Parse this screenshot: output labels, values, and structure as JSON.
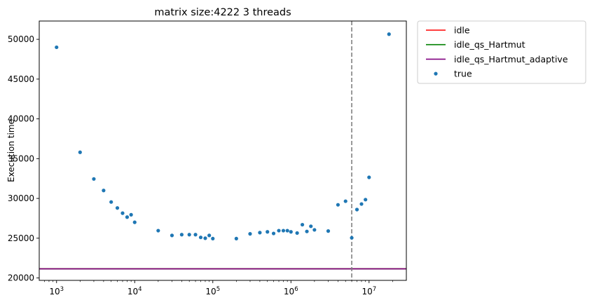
{
  "chart_data": {
    "type": "scatter",
    "title": "matrix size:4222 3 threads",
    "xlabel": "",
    "ylabel": "Execution time",
    "xscale": "log",
    "xlim": [
      600,
      30000000
    ],
    "ylim": [
      19700,
      52300
    ],
    "grid": false,
    "legend_position": "outside-right-top",
    "x_ticks": [
      {
        "value": 1000,
        "base": "10",
        "exp": "3"
      },
      {
        "value": 10000,
        "base": "10",
        "exp": "4"
      },
      {
        "value": 100000,
        "base": "10",
        "exp": "5"
      },
      {
        "value": 1000000,
        "base": "10",
        "exp": "6"
      },
      {
        "value": 10000000,
        "base": "10",
        "exp": "7"
      }
    ],
    "y_ticks": [
      {
        "value": 20000,
        "label": "20000"
      },
      {
        "value": 25000,
        "label": "25000"
      },
      {
        "value": 30000,
        "label": "30000"
      },
      {
        "value": 35000,
        "label": "35000"
      },
      {
        "value": 40000,
        "label": "40000"
      },
      {
        "value": 45000,
        "label": "45000"
      },
      {
        "value": 50000,
        "label": "50000"
      }
    ],
    "hlines": [
      {
        "name": "idle",
        "y": 21150,
        "color": "#ff0000"
      },
      {
        "name": "idle_qs_Hartmut",
        "y": 21150,
        "color": "#008000"
      },
      {
        "name": "idle_qs_Hartmut_adaptive",
        "y": 21150,
        "color": "#800080"
      }
    ],
    "vline": {
      "x": 6000000,
      "color": "#7f7f7f",
      "style": "dashed"
    },
    "series": [
      {
        "name": "true",
        "color": "#1f77b4",
        "points": [
          [
            1000,
            49000
          ],
          [
            2000,
            35800
          ],
          [
            3000,
            32450
          ],
          [
            4000,
            31000
          ],
          [
            5000,
            29550
          ],
          [
            6000,
            28800
          ],
          [
            7000,
            28150
          ],
          [
            8000,
            27650
          ],
          [
            9000,
            27950
          ],
          [
            10000,
            27000
          ],
          [
            20000,
            25950
          ],
          [
            30000,
            25350
          ],
          [
            40000,
            25450
          ],
          [
            50000,
            25450
          ],
          [
            60000,
            25450
          ],
          [
            70000,
            25100
          ],
          [
            80000,
            25000
          ],
          [
            90000,
            25350
          ],
          [
            100000,
            24950
          ],
          [
            200000,
            24950
          ],
          [
            300000,
            25550
          ],
          [
            400000,
            25700
          ],
          [
            500000,
            25800
          ],
          [
            600000,
            25600
          ],
          [
            700000,
            25950
          ],
          [
            800000,
            25950
          ],
          [
            900000,
            25950
          ],
          [
            1000000,
            25800
          ],
          [
            1200000,
            25650
          ],
          [
            1400000,
            26700
          ],
          [
            1600000,
            25850
          ],
          [
            1800000,
            26500
          ],
          [
            2000000,
            26050
          ],
          [
            3000000,
            25900
          ],
          [
            4000000,
            29200
          ],
          [
            5000000,
            29650
          ],
          [
            6000000,
            25050
          ],
          [
            7000000,
            28600
          ],
          [
            8000000,
            29300
          ],
          [
            9000000,
            29850
          ],
          [
            10000000,
            32650
          ],
          [
            18000000,
            50650
          ]
        ]
      }
    ]
  }
}
